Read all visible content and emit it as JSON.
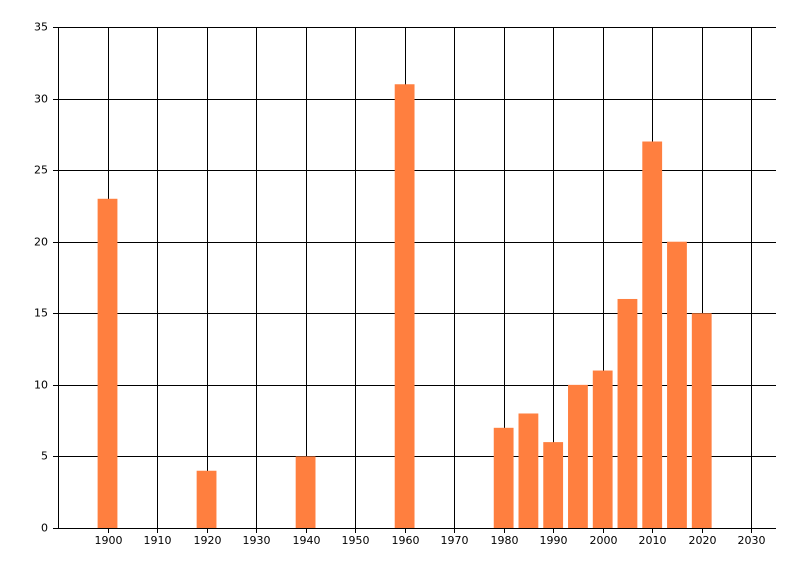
{
  "chart_data": {
    "type": "bar",
    "x": [
      1900,
      1920,
      1940,
      1960,
      1980,
      1985,
      1990,
      1995,
      2000,
      2005,
      2010,
      2015,
      2020
    ],
    "values": [
      23,
      4,
      5,
      31,
      7,
      8,
      6,
      10,
      11,
      16,
      27,
      20,
      15
    ],
    "color": "#ff7f3f",
    "xlim": [
      1890,
      2035
    ],
    "xticks": [
      1900,
      1910,
      1920,
      1930,
      1940,
      1950,
      1960,
      1970,
      1980,
      1990,
      2000,
      2010,
      2020,
      2030
    ],
    "ylim": [
      0,
      35
    ],
    "yticks": [
      0,
      5,
      10,
      15,
      20,
      25,
      30,
      35
    ],
    "grid": true
  }
}
